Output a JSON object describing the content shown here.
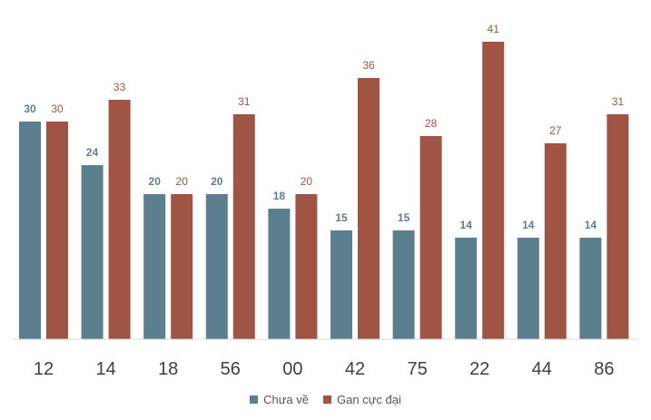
{
  "chart_data": {
    "type": "bar",
    "categories": [
      "12",
      "14",
      "18",
      "56",
      "00",
      "42",
      "75",
      "22",
      "44",
      "86"
    ],
    "series": [
      {
        "name": "Chưa về",
        "values": [
          30,
          24,
          20,
          20,
          18,
          15,
          15,
          14,
          14,
          14
        ],
        "color": "#5b7f8e"
      },
      {
        "name": "Gan cực đại",
        "values": [
          30,
          33,
          20,
          31,
          20,
          36,
          28,
          41,
          27,
          31
        ],
        "color": "#a05444"
      }
    ],
    "title": "",
    "xlabel": "",
    "ylabel": "",
    "ylim": [
      0,
      41
    ],
    "grid": false,
    "legend": "bottom",
    "data_labels": true
  }
}
